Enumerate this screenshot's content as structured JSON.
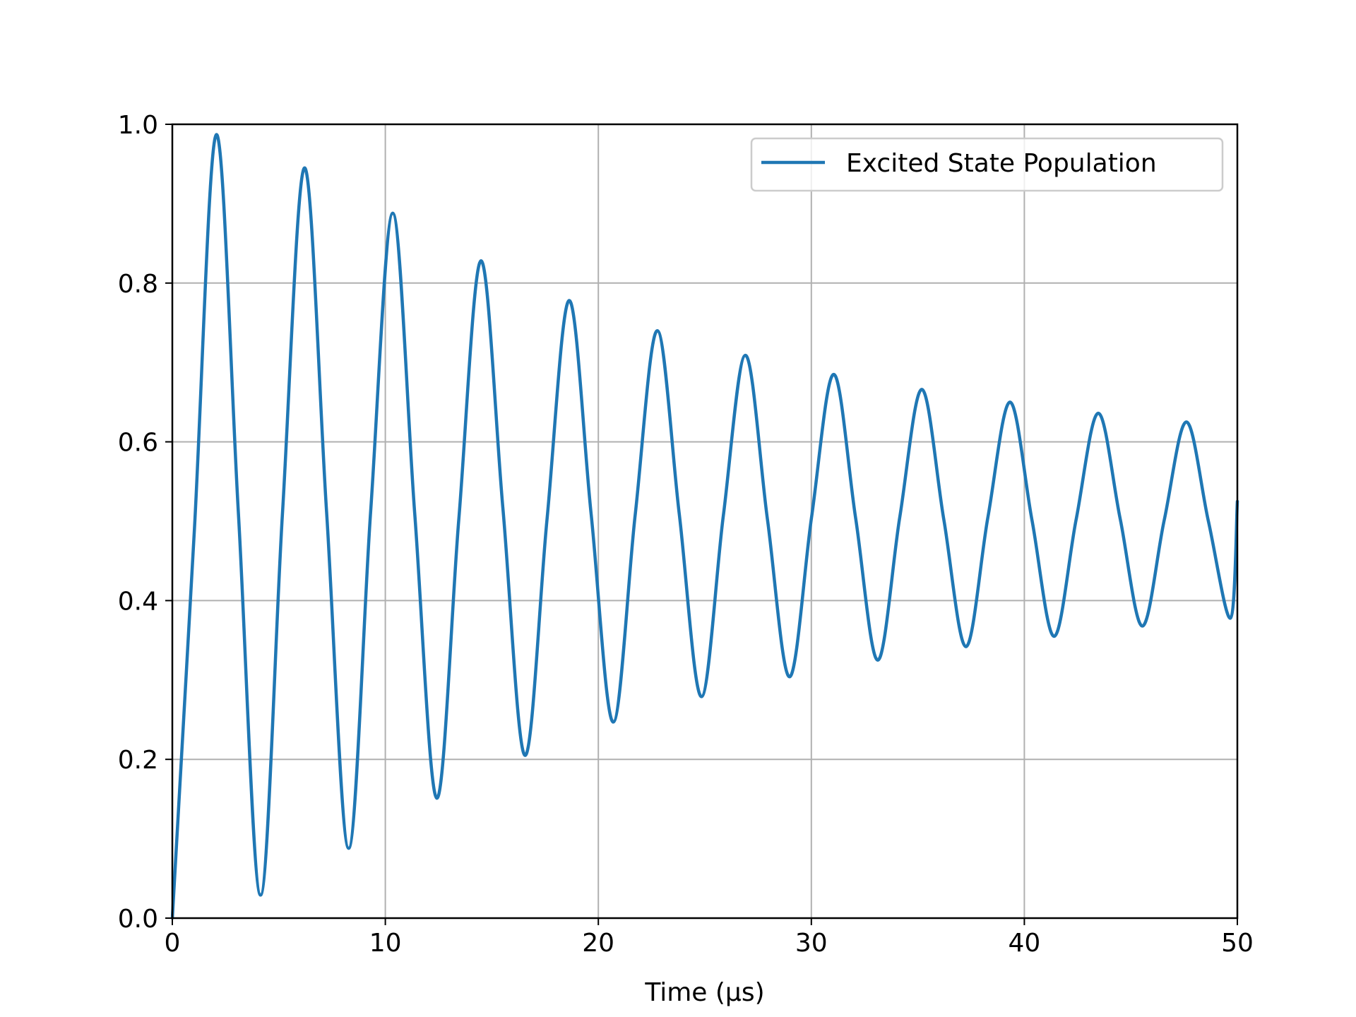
{
  "chart_data": {
    "type": "line",
    "title": "",
    "xlabel": "Time (μs)",
    "ylabel": "",
    "xlim": [
      0,
      50
    ],
    "ylim": [
      0,
      1.0
    ],
    "xticks": [
      "0",
      "10",
      "20",
      "30",
      "40",
      "50"
    ],
    "yticks": [
      "0.0",
      "0.2",
      "0.4",
      "0.6",
      "0.8",
      "1.0"
    ],
    "grid": true,
    "legend_position": "top-right",
    "series": [
      {
        "name": "Excited State Population",
        "color": "#1f77b4",
        "x": [
          0.0,
          1.03,
          2.07,
          3.1,
          4.14,
          5.17,
          6.21,
          7.24,
          8.28,
          9.31,
          10.35,
          11.38,
          12.42,
          13.45,
          14.49,
          15.52,
          16.56,
          17.59,
          18.63,
          19.66,
          20.7,
          21.73,
          22.77,
          23.8,
          24.84,
          25.87,
          26.91,
          27.94,
          28.98,
          30.01,
          31.05,
          32.08,
          33.12,
          34.15,
          35.19,
          36.22,
          37.26,
          38.29,
          39.33,
          40.36,
          41.4,
          42.43,
          43.47,
          44.5,
          45.54,
          46.57,
          47.61,
          48.64,
          49.68,
          50.0
        ],
        "y": [
          0.0,
          0.487,
          0.987,
          0.511,
          0.029,
          0.509,
          0.945,
          0.512,
          0.088,
          0.512,
          0.888,
          0.51,
          0.151,
          0.503,
          0.828,
          0.516,
          0.205,
          0.502,
          0.778,
          0.51,
          0.247,
          0.508,
          0.74,
          0.509,
          0.279,
          0.507,
          0.709,
          0.502,
          0.304,
          0.505,
          0.685,
          0.504,
          0.325,
          0.505,
          0.666,
          0.502,
          0.342,
          0.505,
          0.65,
          0.501,
          0.355,
          0.502,
          0.636,
          0.503,
          0.368,
          0.502,
          0.625,
          0.5,
          0.378,
          0.525
        ]
      }
    ]
  }
}
